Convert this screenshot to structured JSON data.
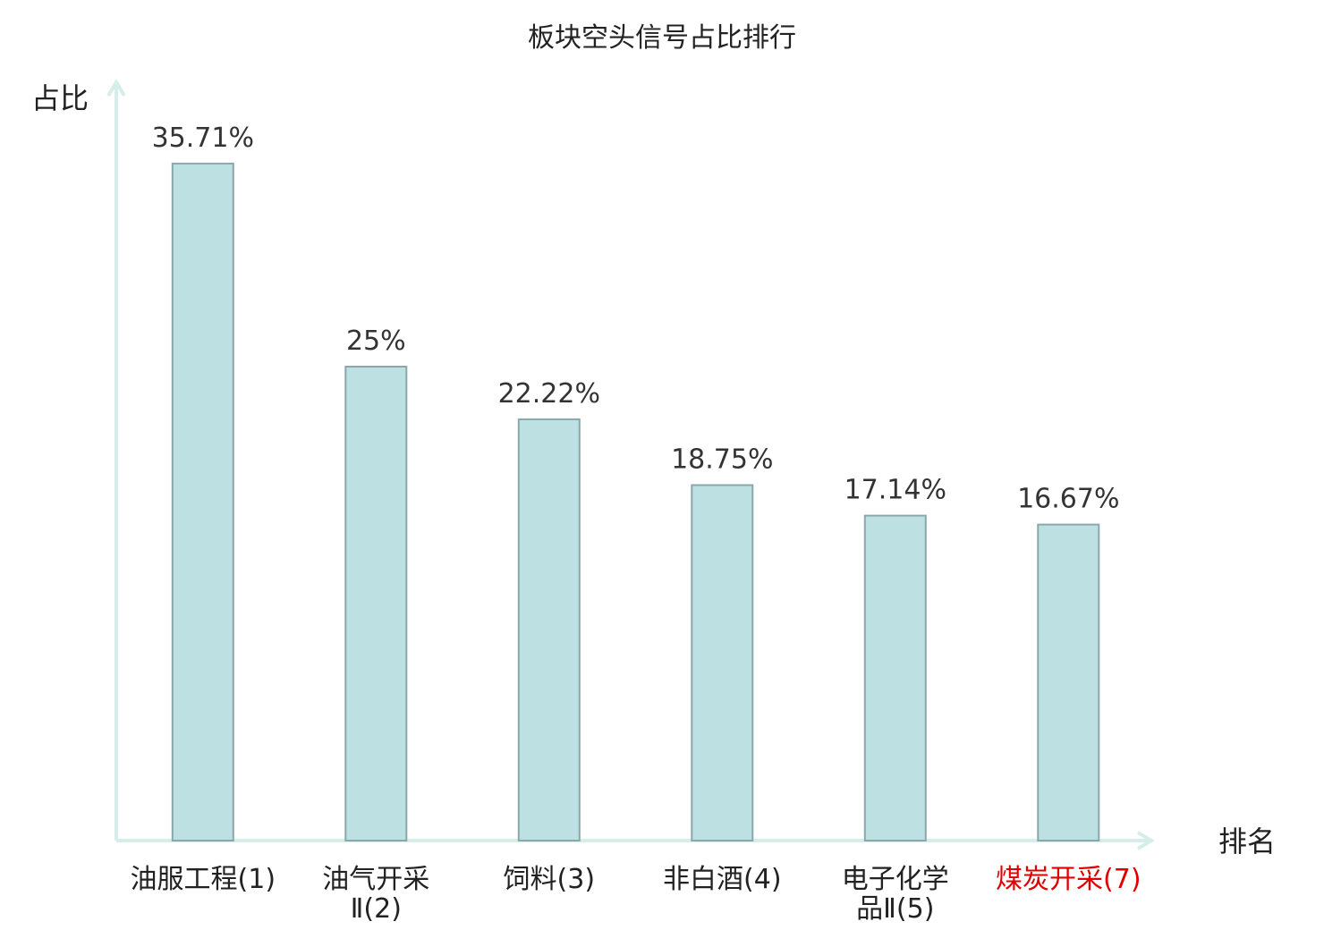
{
  "chart_data": {
    "type": "bar",
    "title": "板块空头信号占比排行",
    "xlabel": "排名",
    "ylabel": "占比",
    "unit": "%",
    "ylim": [
      0,
      37
    ],
    "grid": false,
    "categories": [
      "油服工程(1)",
      "油气开采Ⅱ(2)",
      "饲料(3)",
      "非白酒(4)",
      "电子化学品Ⅱ(5)",
      "煤炭开采(7)"
    ],
    "category_lines": [
      [
        "油服工程(1)"
      ],
      [
        "油气开采",
        "Ⅱ(2)"
      ],
      [
        "饲料(3)"
      ],
      [
        "非白酒(4)"
      ],
      [
        "电子化学",
        "品Ⅱ(5)"
      ],
      [
        "煤炭开采(7)"
      ]
    ],
    "values": [
      35.71,
      25,
      22.22,
      18.75,
      17.14,
      16.67
    ],
    "value_labels": [
      "35.71%",
      "25%",
      "22.22%",
      "18.75%",
      "17.14%",
      "16.67%"
    ],
    "highlight_index": 5
  },
  "colors": {
    "bar_fill": "#bde0e3",
    "bar_stroke": "#8aa8ab",
    "axis": "#d6ede9",
    "highlight": "#e00000"
  }
}
